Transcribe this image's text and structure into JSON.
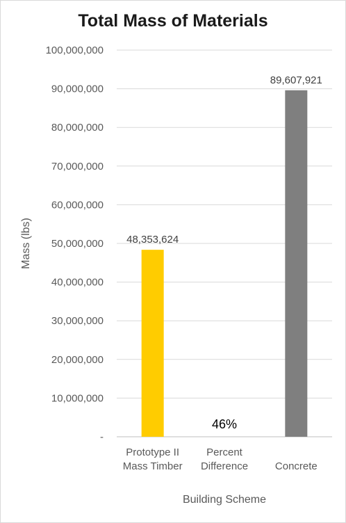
{
  "chart_data": {
    "type": "bar",
    "title": "Total Mass of Materials",
    "xlabel": "Building Scheme",
    "ylabel": "Mass (lbs)",
    "ylim": [
      0,
      100000000
    ],
    "grid": true,
    "y_ticks": [
      "-",
      "10,000,000",
      "20,000,000",
      "30,000,000",
      "40,000,000",
      "50,000,000",
      "60,000,000",
      "70,000,000",
      "80,000,000",
      "90,000,000",
      "100,000,000"
    ],
    "categories": [
      {
        "lines": [
          "Prototype II",
          "Mass Timber"
        ]
      },
      {
        "lines": [
          "Percent",
          "Difference"
        ]
      },
      {
        "lines": [
          "Concrete"
        ]
      }
    ],
    "values": [
      48353624,
      null,
      89607921
    ],
    "data_labels": [
      "48,353,624",
      "46%",
      "89,607,921"
    ],
    "colors": [
      "#ffcc00",
      null,
      "#7f7f7f"
    ]
  }
}
